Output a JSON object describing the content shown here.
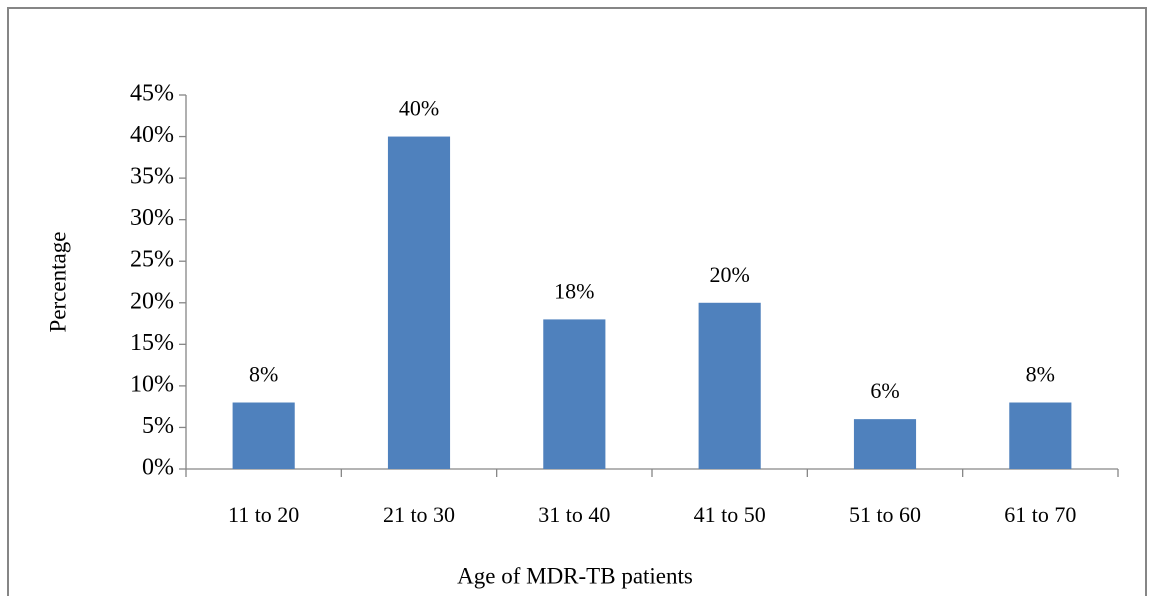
{
  "chart_data": {
    "type": "bar",
    "x_label": "Age of MDR-TB patients",
    "y_label": "Percentage",
    "categories": [
      "11 to 20",
      "21 to 30",
      "31 to 40",
      "41 to 50",
      "51 to 60",
      "61 to 70"
    ],
    "values": [
      8,
      40,
      18,
      20,
      6,
      8
    ],
    "value_labels": [
      "8%",
      "40%",
      "18%",
      "20%",
      "6%",
      "8%"
    ],
    "color": "#4f81bd",
    "ylim": [
      0,
      45
    ],
    "yticks": [
      {
        "value": 0,
        "label": "0%"
      },
      {
        "value": 5,
        "label": "5%"
      },
      {
        "value": 10,
        "label": "10%"
      },
      {
        "value": 15,
        "label": "15%"
      },
      {
        "value": 20,
        "label": "20%"
      },
      {
        "value": 25,
        "label": "25%"
      },
      {
        "value": 30,
        "label": "30%"
      },
      {
        "value": 35,
        "label": "35%"
      },
      {
        "value": 40,
        "label": "40%"
      },
      {
        "value": 45,
        "label": "45%"
      }
    ],
    "grid": false
  }
}
